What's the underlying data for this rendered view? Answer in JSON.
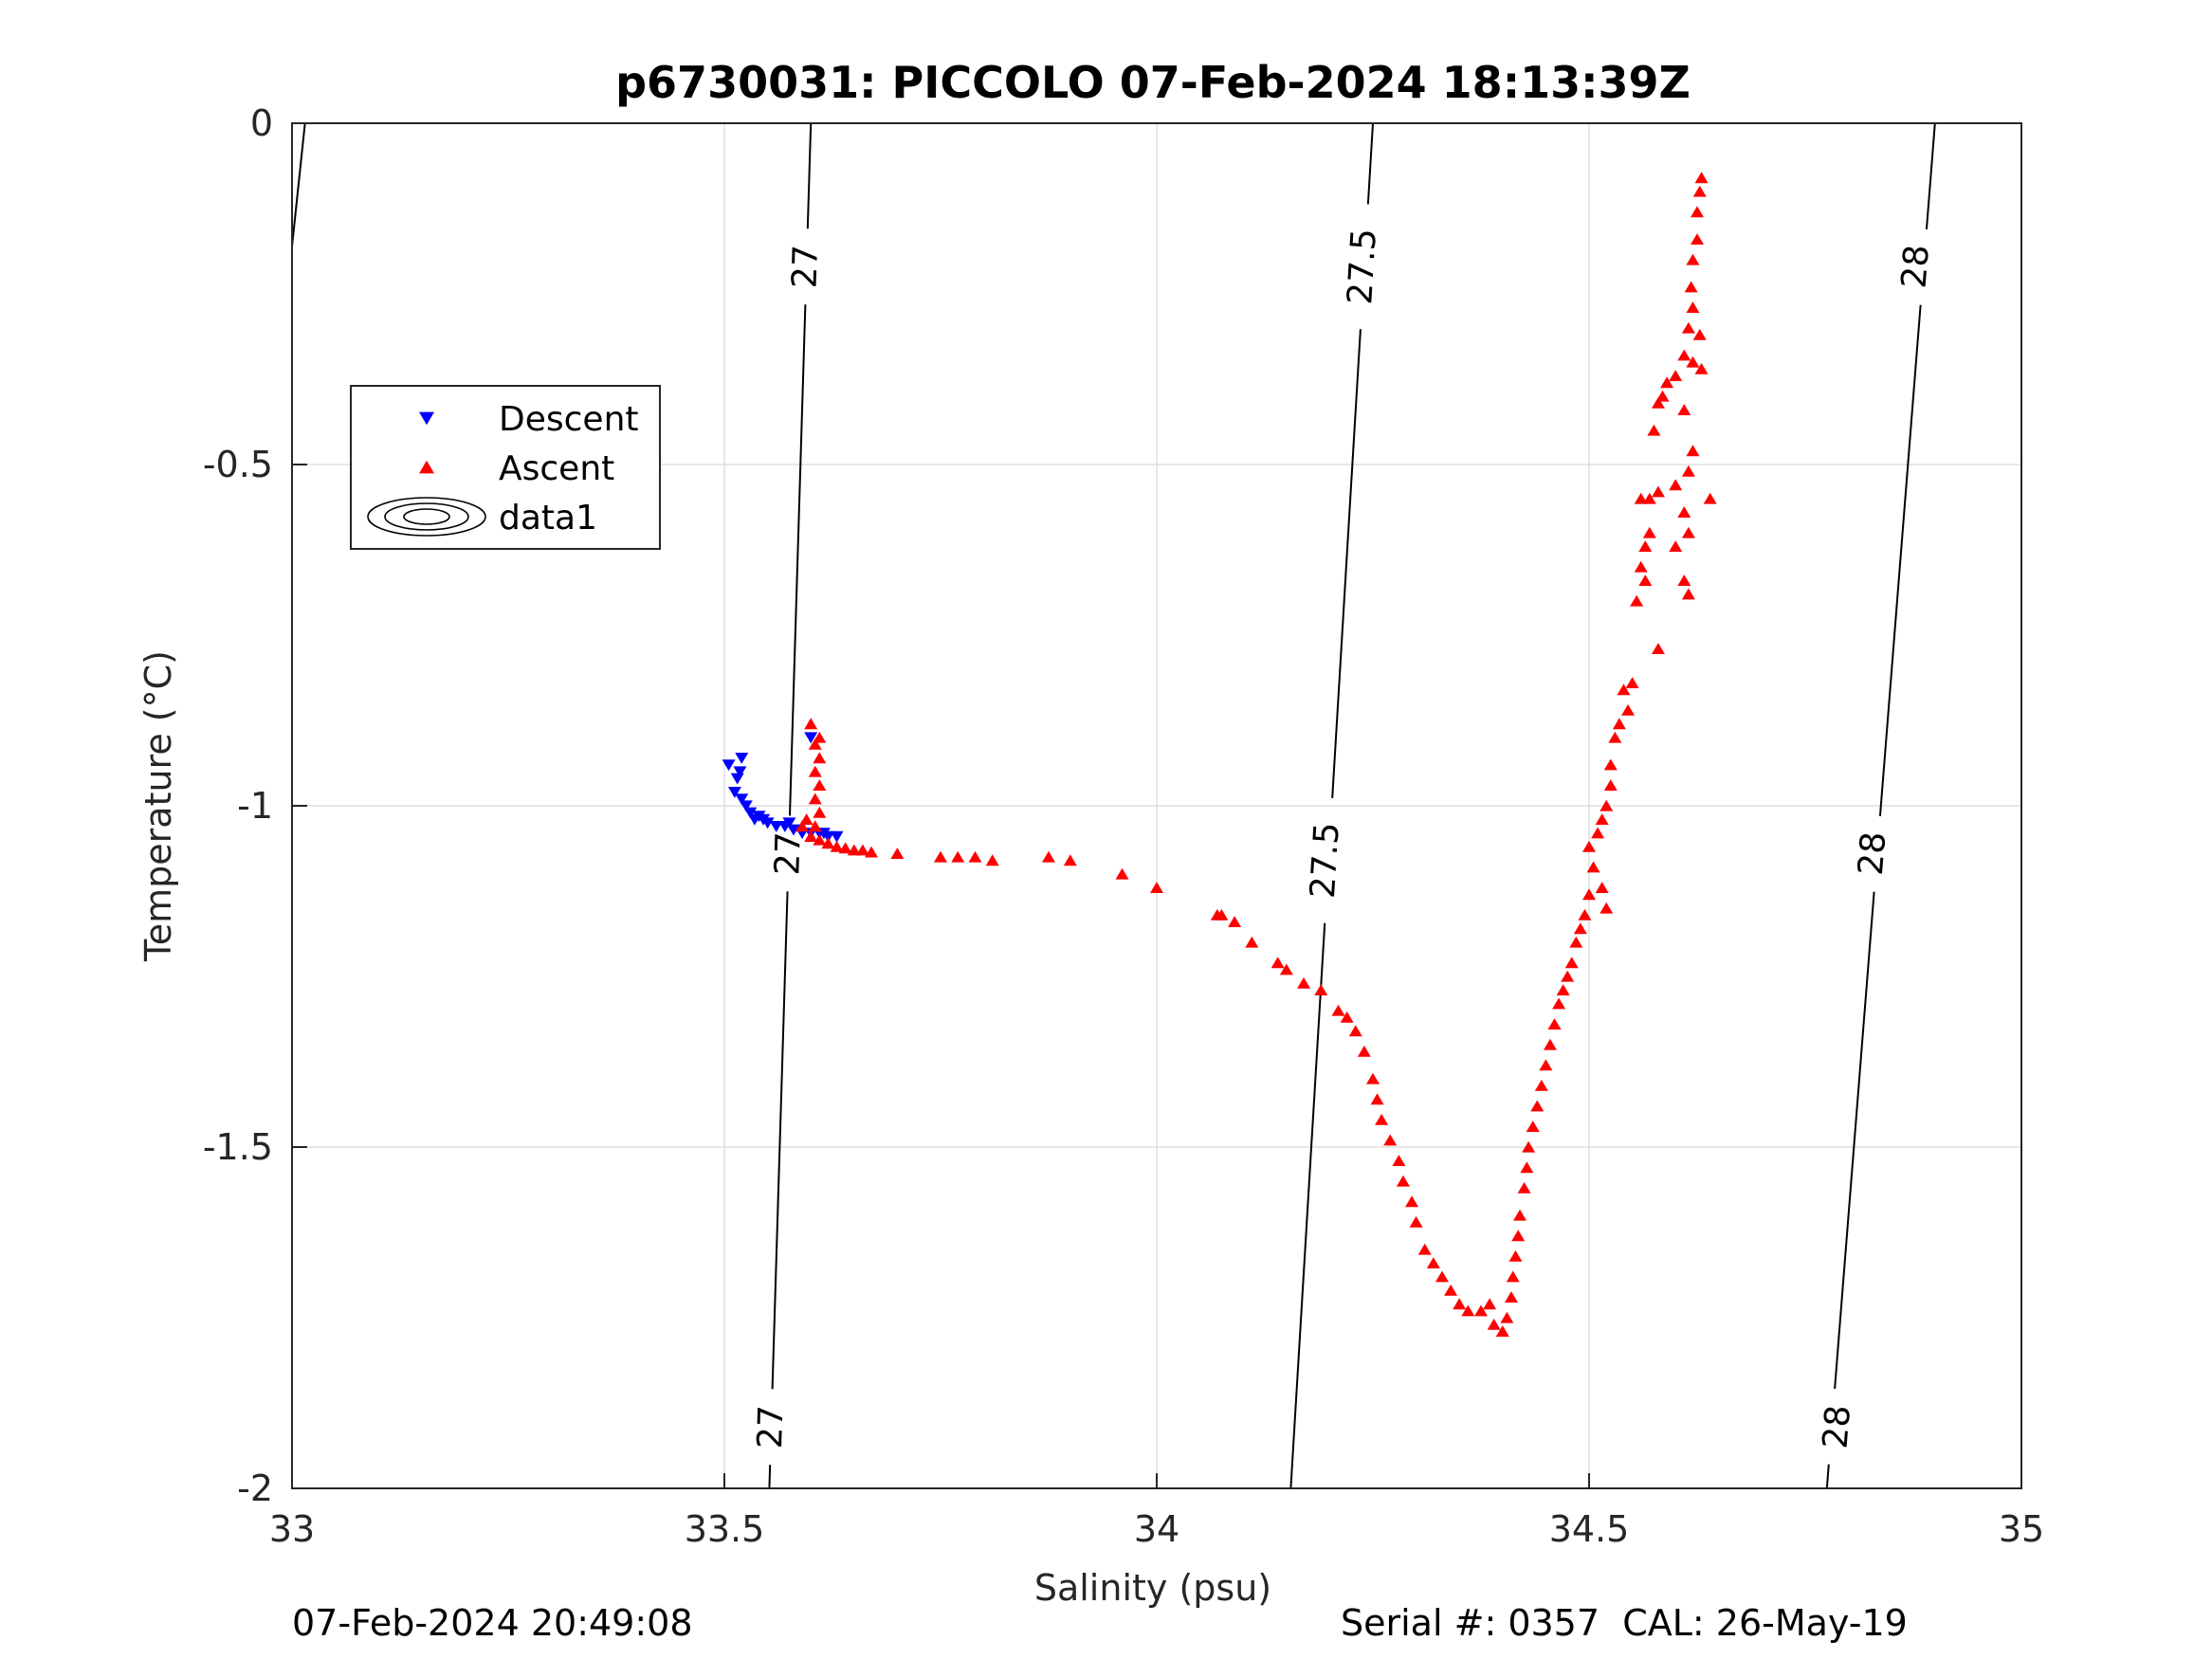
{
  "chart_data": {
    "type": "scatter",
    "title": "p6730031: PICCOLO 07-Feb-2024 18:13:39Z",
    "xlabel": "Salinity (psu)",
    "ylabel": "Temperature (°C)",
    "xlim": [
      33,
      35
    ],
    "ylim": [
      -2,
      0
    ],
    "xticks": [
      33,
      33.5,
      34,
      34.5,
      35
    ],
    "xtick_labels": [
      "33",
      "33.5",
      "34",
      "34.5",
      "35"
    ],
    "yticks": [
      0,
      -0.5,
      -1,
      -1.5,
      -2
    ],
    "ytick_labels": [
      "0",
      "-0.5",
      "-1",
      "-1.5",
      "-2"
    ],
    "grid": true,
    "legend": {
      "placement": "upper-left",
      "entries": [
        {
          "label": "Descent",
          "marker": "triangle-down",
          "color": "#0000ff"
        },
        {
          "label": "Ascent",
          "marker": "triangle-up",
          "color": "#ff0000"
        },
        {
          "label": "data1",
          "marker": "contour",
          "color": "#000000"
        }
      ]
    },
    "series": [
      {
        "name": "Descent",
        "marker": "triangle-down",
        "color": "#0000ff",
        "points": [
          [
            33.505,
            -0.94
          ],
          [
            33.515,
            -0.96
          ],
          [
            33.52,
            -0.93
          ],
          [
            33.518,
            -0.95
          ],
          [
            33.512,
            -0.98
          ],
          [
            33.52,
            -0.99
          ],
          [
            33.525,
            -1.0
          ],
          [
            33.53,
            -1.01
          ],
          [
            33.535,
            -1.02
          ],
          [
            33.54,
            -1.015
          ],
          [
            33.545,
            -1.02
          ],
          [
            33.55,
            -1.025
          ],
          [
            33.56,
            -1.03
          ],
          [
            33.57,
            -1.03
          ],
          [
            33.575,
            -1.025
          ],
          [
            33.58,
            -1.035
          ],
          [
            33.59,
            -1.04
          ],
          [
            33.6,
            -1.04
          ],
          [
            33.61,
            -1.04
          ],
          [
            33.615,
            -1.04
          ],
          [
            33.62,
            -1.045
          ],
          [
            33.63,
            -1.045
          ],
          [
            33.6,
            -0.9
          ]
        ]
      },
      {
        "name": "Ascent",
        "marker": "triangle-up",
        "color": "#ff0000",
        "points": [
          [
            34.63,
            -0.08
          ],
          [
            34.628,
            -0.1
          ],
          [
            34.625,
            -0.13
          ],
          [
            34.625,
            -0.17
          ],
          [
            34.62,
            -0.2
          ],
          [
            34.618,
            -0.24
          ],
          [
            34.62,
            -0.27
          ],
          [
            34.615,
            -0.3
          ],
          [
            34.628,
            -0.31
          ],
          [
            34.61,
            -0.34
          ],
          [
            34.62,
            -0.35
          ],
          [
            34.63,
            -0.36
          ],
          [
            34.6,
            -0.37
          ],
          [
            34.59,
            -0.38
          ],
          [
            34.585,
            -0.4
          ],
          [
            34.58,
            -0.41
          ],
          [
            34.575,
            -0.45
          ],
          [
            34.61,
            -0.42
          ],
          [
            34.62,
            -0.48
          ],
          [
            34.615,
            -0.51
          ],
          [
            34.64,
            -0.55
          ],
          [
            34.58,
            -0.54
          ],
          [
            34.57,
            -0.55
          ],
          [
            34.56,
            -0.55
          ],
          [
            34.6,
            -0.53
          ],
          [
            34.61,
            -0.57
          ],
          [
            34.615,
            -0.6
          ],
          [
            34.6,
            -0.62
          ],
          [
            34.57,
            -0.6
          ],
          [
            34.565,
            -0.62
          ],
          [
            34.56,
            -0.65
          ],
          [
            34.555,
            -0.7
          ],
          [
            34.565,
            -0.67
          ],
          [
            34.61,
            -0.67
          ],
          [
            34.615,
            -0.69
          ],
          [
            34.58,
            -0.77
          ],
          [
            34.55,
            -0.82
          ],
          [
            34.54,
            -0.83
          ],
          [
            34.545,
            -0.86
          ],
          [
            34.535,
            -0.88
          ],
          [
            34.53,
            -0.9
          ],
          [
            34.525,
            -0.94
          ],
          [
            34.525,
            -0.97
          ],
          [
            34.52,
            -1.0
          ],
          [
            34.515,
            -1.02
          ],
          [
            34.51,
            -1.04
          ],
          [
            34.5,
            -1.06
          ],
          [
            34.505,
            -1.09
          ],
          [
            34.515,
            -1.12
          ],
          [
            34.52,
            -1.15
          ],
          [
            34.5,
            -1.13
          ],
          [
            34.495,
            -1.16
          ],
          [
            34.49,
            -1.18
          ],
          [
            34.485,
            -1.2
          ],
          [
            34.48,
            -1.23
          ],
          [
            34.475,
            -1.25
          ],
          [
            34.47,
            -1.27
          ],
          [
            34.465,
            -1.29
          ],
          [
            34.46,
            -1.32
          ],
          [
            34.455,
            -1.35
          ],
          [
            34.45,
            -1.38
          ],
          [
            34.445,
            -1.41
          ],
          [
            34.44,
            -1.44
          ],
          [
            34.435,
            -1.47
          ],
          [
            34.43,
            -1.5
          ],
          [
            34.428,
            -1.53
          ],
          [
            34.425,
            -1.56
          ],
          [
            34.42,
            -1.6
          ],
          [
            34.418,
            -1.63
          ],
          [
            34.415,
            -1.66
          ],
          [
            34.412,
            -1.69
          ],
          [
            34.41,
            -1.72
          ],
          [
            34.405,
            -1.75
          ],
          [
            34.4,
            -1.77
          ],
          [
            34.39,
            -1.76
          ],
          [
            34.385,
            -1.73
          ],
          [
            34.375,
            -1.74
          ],
          [
            34.36,
            -1.74
          ],
          [
            34.35,
            -1.73
          ],
          [
            34.34,
            -1.71
          ],
          [
            34.33,
            -1.69
          ],
          [
            34.32,
            -1.67
          ],
          [
            34.31,
            -1.65
          ],
          [
            34.3,
            -1.61
          ],
          [
            34.295,
            -1.58
          ],
          [
            34.285,
            -1.55
          ],
          [
            34.28,
            -1.52
          ],
          [
            34.27,
            -1.49
          ],
          [
            34.26,
            -1.46
          ],
          [
            34.255,
            -1.43
          ],
          [
            34.25,
            -1.4
          ],
          [
            34.24,
            -1.36
          ],
          [
            34.23,
            -1.33
          ],
          [
            34.22,
            -1.31
          ],
          [
            34.21,
            -1.3
          ],
          [
            34.19,
            -1.27
          ],
          [
            34.17,
            -1.26
          ],
          [
            34.15,
            -1.24
          ],
          [
            34.14,
            -1.23
          ],
          [
            34.11,
            -1.2
          ],
          [
            34.09,
            -1.17
          ],
          [
            34.075,
            -1.16
          ],
          [
            34.07,
            -1.16
          ],
          [
            34.0,
            -1.12
          ],
          [
            33.96,
            -1.1
          ],
          [
            33.9,
            -1.08
          ],
          [
            33.875,
            -1.075
          ],
          [
            33.81,
            -1.08
          ],
          [
            33.79,
            -1.075
          ],
          [
            33.77,
            -1.075
          ],
          [
            33.75,
            -1.075
          ],
          [
            33.7,
            -1.07
          ],
          [
            33.67,
            -1.068
          ],
          [
            33.66,
            -1.065
          ],
          [
            33.65,
            -1.065
          ],
          [
            33.64,
            -1.062
          ],
          [
            33.63,
            -1.06
          ],
          [
            33.62,
            -1.055
          ],
          [
            33.61,
            -1.05
          ],
          [
            33.6,
            -1.045
          ],
          [
            33.605,
            -1.03
          ],
          [
            33.61,
            -1.01
          ],
          [
            33.605,
            -0.99
          ],
          [
            33.61,
            -0.97
          ],
          [
            33.605,
            -0.95
          ],
          [
            33.61,
            -0.93
          ],
          [
            33.605,
            -0.91
          ],
          [
            33.6,
            -0.88
          ],
          [
            33.61,
            -0.9
          ],
          [
            33.595,
            -1.02
          ],
          [
            33.59,
            -1.03
          ]
        ]
      }
    ],
    "contours": [
      {
        "level": "27",
        "line": [
          [
            33.552,
            -2.0
          ],
          [
            33.6,
            0.0
          ]
        ],
        "labels": [
          {
            "text": "27",
            "x": 33.594,
            "y": -0.21
          },
          {
            "text": "27",
            "x": 33.574,
            "y": -1.07
          },
          {
            "text": "27",
            "x": 33.554,
            "y": -1.91
          }
        ]
      },
      {
        "level": "27.5",
        "line": [
          [
            34.155,
            -2.0
          ],
          [
            34.25,
            0.0
          ]
        ],
        "labels": [
          {
            "text": "27.5",
            "x": 34.238,
            "y": -0.21
          },
          {
            "text": "27.5",
            "x": 34.195,
            "y": -1.08
          }
        ]
      },
      {
        "level": "28",
        "line": [
          [
            34.775,
            -2.0
          ],
          [
            34.9,
            0.0
          ]
        ],
        "labels": [
          {
            "text": "28",
            "x": 34.878,
            "y": -0.21
          },
          {
            "text": "28",
            "x": 34.828,
            "y": -1.07
          },
          {
            "text": "28",
            "x": 34.787,
            "y": -1.91
          }
        ]
      },
      {
        "level": "",
        "line": [
          [
            33.0,
            -0.18
          ],
          [
            33.015,
            0.0
          ]
        ],
        "labels": []
      }
    ]
  },
  "footer": {
    "left": "07-Feb-2024 20:49:08",
    "right": "Serial #: 0357  CAL: 26-May-19"
  }
}
